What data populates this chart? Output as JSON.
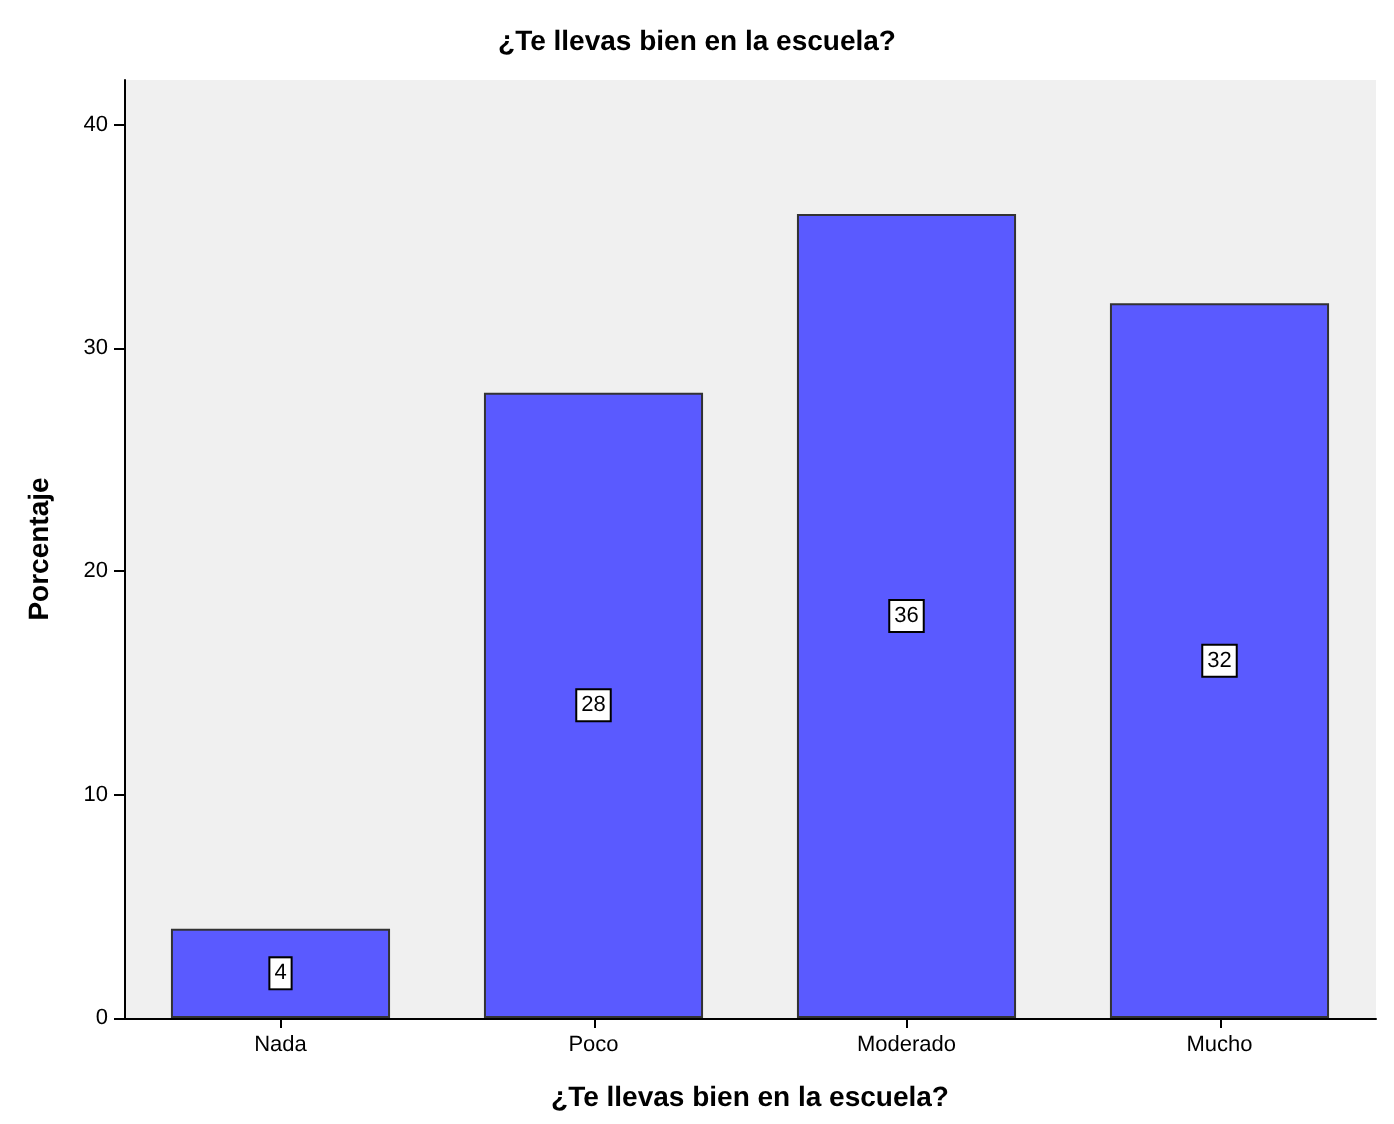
{
  "chart_data": {
    "type": "bar",
    "title": "¿Te llevas bien en la escuela?",
    "xlabel": "¿Te llevas bien en la escuela?",
    "ylabel": "Porcentaje",
    "categories": [
      "Nada",
      "Poco",
      "Moderado",
      "Mucho"
    ],
    "values": [
      4,
      28,
      36,
      32
    ],
    "color": "#5a5aff",
    "ylim": [
      0,
      42
    ],
    "yticks": [
      0,
      10,
      20,
      30,
      40
    ],
    "grid": false,
    "data_labels": true
  }
}
